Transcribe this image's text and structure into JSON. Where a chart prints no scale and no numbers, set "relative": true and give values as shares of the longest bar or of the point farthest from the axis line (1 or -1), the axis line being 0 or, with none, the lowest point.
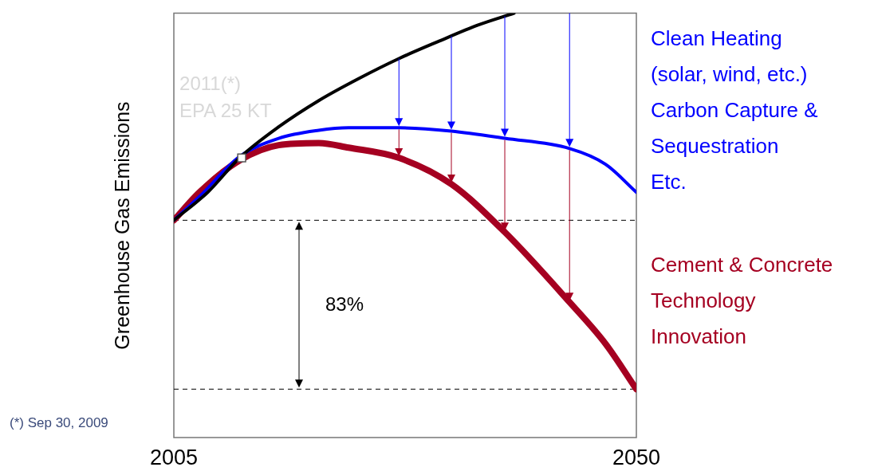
{
  "chart_data": {
    "type": "line",
    "relative": true,
    "ylabel": "Greenhouse Gas Emissions",
    "xlim": [
      2005,
      2050
    ],
    "xticks": [
      2005,
      2050
    ],
    "grid": false,
    "legend": "right",
    "line_style": "solid",
    "marker": "none",
    "series": [
      {
        "color": "#000000",
        "x": [
          2005,
          2008.3,
          2011.4,
          2015.2,
          2019.1,
          2023,
          2026.9,
          2030.8,
          2034.6,
          2038.1
        ],
        "values": [
          0.512,
          0.578,
          0.659,
          0.732,
          0.794,
          0.846,
          0.893,
          0.934,
          0.972,
          1
        ]
      },
      {
        "name": "Clean Heating\n(solar, wind, etc.)\nCarbon Capture &\nSequestration\nEtc.",
        "color": "#0000ff",
        "x": [
          2005,
          2007.5,
          2011.4,
          2015.2,
          2019.1,
          2022,
          2026.9,
          2032,
          2037.2,
          2043.5,
          2047,
          2050
        ],
        "values": [
          0.512,
          0.568,
          0.662,
          0.705,
          0.724,
          0.73,
          0.73,
          0.722,
          0.705,
          0.681,
          0.644,
          0.578
        ]
      },
      {
        "name": "Cement & Concrete\nTechnology\nInnovation",
        "color": "#a50021",
        "x": [
          2005,
          2007.5,
          2011.4,
          2015.2,
          2019.1,
          2022,
          2026.9,
          2032,
          2037.2,
          2043.5,
          2047,
          2050
        ],
        "values": [
          0.512,
          0.578,
          0.653,
          0.689,
          0.694,
          0.683,
          0.659,
          0.597,
          0.484,
          0.319,
          0.221,
          0.114
        ]
      },
      {
        "type": "scatter",
        "marker": "square",
        "color": "#ffffff",
        "x": [
          2011.6
        ],
        "values": [
          0.659
        ]
      }
    ],
    "ref_lines": [
      {
        "axis": "y",
        "value": 0.512,
        "line_style": "dashed",
        "color": "#000000"
      },
      {
        "axis": "y",
        "value": 0.114,
        "line_style": "dashed",
        "color": "#000000"
      }
    ],
    "annotations": [
      {
        "text": "2011(*)\nEPA 25 KT",
        "x": 2011.6,
        "y": 0.659
      },
      "83%",
      "(*) Sep 30, 2009"
    ]
  }
}
